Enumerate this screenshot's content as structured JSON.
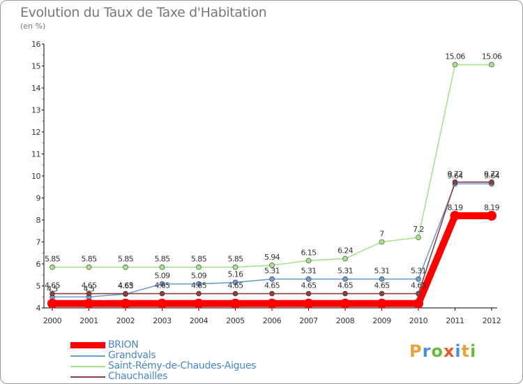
{
  "title": "Evolution du Taux de Taxe d'Habitation",
  "subtitle": "(en %)",
  "logo": {
    "text": "Proxiti",
    "colors": [
      "#e8a33a",
      "#4a8fd6",
      "#6bb93a",
      "#e85a2a",
      "#4a8fd6",
      "#e8a33a",
      "#6bb93a"
    ]
  },
  "chart_data": {
    "type": "line",
    "x": [
      "2000",
      "2001",
      "2002",
      "2003",
      "2004",
      "2005",
      "2006",
      "2007",
      "2008",
      "2009",
      "2010",
      "2011",
      "2012"
    ],
    "ylim": [
      4,
      16
    ],
    "yticks": [
      "4",
      "5",
      "6",
      "7",
      "8",
      "9",
      "10",
      "11",
      "12",
      "13",
      "14",
      "15",
      "16"
    ],
    "grid": false,
    "legend_position": "bottom-left",
    "series": [
      {
        "name": "BRION",
        "color": "#ff0000",
        "values": [
          4.2,
          4.2,
          4.2,
          4.2,
          4.2,
          4.2,
          4.2,
          4.2,
          4.2,
          4.2,
          4.2,
          8.19,
          8.19
        ],
        "labels": [
          "",
          "",
          "",
          "",
          "",
          "",
          "",
          "",
          "",
          "",
          "",
          "8.19",
          "8.19"
        ]
      },
      {
        "name": "Grandvals",
        "color": "#6e9ecf",
        "values": [
          4.5,
          4.5,
          4.63,
          5.09,
          5.09,
          5.16,
          5.31,
          5.31,
          5.31,
          5.31,
          5.31,
          9.64,
          9.64
        ],
        "labels": [
          "4.5",
          "4.5",
          "4.63",
          "5.09",
          "5.09",
          "5.16",
          "5.31",
          "5.31",
          "5.31",
          "5.31",
          "5.31",
          "9.64",
          "9.64"
        ]
      },
      {
        "name": "Saint-Rémy-de-Chaudes-Aigues",
        "color": "#a8e28a",
        "values": [
          5.85,
          5.85,
          5.85,
          5.85,
          5.85,
          5.85,
          5.94,
          6.15,
          6.24,
          7,
          7.2,
          15.06,
          15.06
        ],
        "labels": [
          "5.85",
          "5.85",
          "5.85",
          "5.85",
          "5.85",
          "5.85",
          "5.94",
          "6.15",
          "6.24",
          "7",
          "7.2",
          "15.06",
          "15.06"
        ]
      },
      {
        "name": "Chauchailles",
        "color": "#8b3f3f",
        "values": [
          4.65,
          4.65,
          4.65,
          4.65,
          4.65,
          4.65,
          4.65,
          4.65,
          4.65,
          4.65,
          4.65,
          9.72,
          9.72
        ],
        "labels": [
          "4.65",
          "4.65",
          "4.65",
          "4.65",
          "4.65",
          "4.65",
          "4.65",
          "4.65",
          "4.65",
          "4.65",
          "4.65",
          "9.72",
          "9.72"
        ]
      }
    ]
  }
}
